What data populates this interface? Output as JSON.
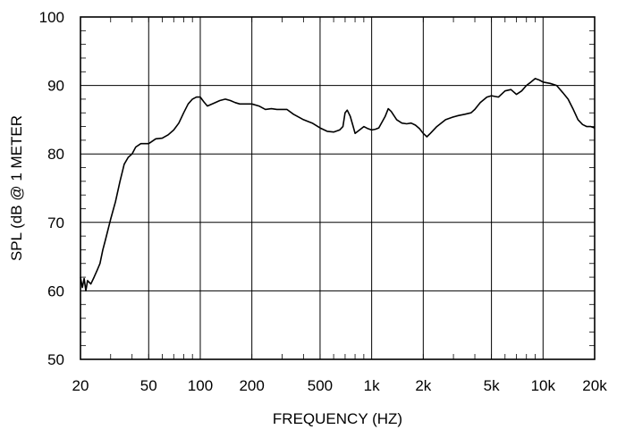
{
  "chart_data": {
    "type": "line",
    "title": "",
    "xlabel": "FREQUENCY  (HZ)",
    "ylabel": "SPL (dB @ 1 METER",
    "xscale": "log",
    "xlim": [
      20,
      20000
    ],
    "ylim": [
      50,
      100
    ],
    "grid": true,
    "x_ticks": [
      20,
      50,
      100,
      200,
      500,
      1000,
      2000,
      5000,
      10000,
      20000
    ],
    "x_tick_labels": [
      "20",
      "50",
      "100",
      "200",
      "500",
      "1k",
      "2k",
      "5k",
      "10k",
      "20k"
    ],
    "y_ticks": [
      50,
      60,
      70,
      80,
      90,
      100
    ],
    "y_tick_labels": [
      "50",
      "60",
      "70",
      "80",
      "90",
      "100"
    ],
    "series": [
      {
        "color": "#000000",
        "points": [
          [
            20,
            62
          ],
          [
            20.5,
            60.5
          ],
          [
            21,
            61.8
          ],
          [
            21.5,
            60.0
          ],
          [
            22,
            61.5
          ],
          [
            23,
            61.0
          ],
          [
            24,
            62.0
          ],
          [
            25,
            63.0
          ],
          [
            26,
            64.0
          ],
          [
            27,
            66.0
          ],
          [
            28,
            67.5
          ],
          [
            29,
            69.0
          ],
          [
            30,
            70.5
          ],
          [
            32,
            73.0
          ],
          [
            34,
            76.0
          ],
          [
            36,
            78.5
          ],
          [
            38,
            79.5
          ],
          [
            40,
            80.0
          ],
          [
            42,
            81.0
          ],
          [
            45,
            81.5
          ],
          [
            50,
            81.5
          ],
          [
            55,
            82.2
          ],
          [
            60,
            82.3
          ],
          [
            65,
            82.8
          ],
          [
            70,
            83.5
          ],
          [
            75,
            84.5
          ],
          [
            80,
            86.0
          ],
          [
            85,
            87.3
          ],
          [
            90,
            88.0
          ],
          [
            95,
            88.3
          ],
          [
            100,
            88.3
          ],
          [
            105,
            87.6
          ],
          [
            110,
            87.0
          ],
          [
            120,
            87.4
          ],
          [
            130,
            87.8
          ],
          [
            140,
            88.0
          ],
          [
            150,
            87.8
          ],
          [
            160,
            87.5
          ],
          [
            170,
            87.3
          ],
          [
            180,
            87.3
          ],
          [
            200,
            87.3
          ],
          [
            220,
            87.0
          ],
          [
            240,
            86.5
          ],
          [
            260,
            86.6
          ],
          [
            280,
            86.5
          ],
          [
            300,
            86.5
          ],
          [
            320,
            86.5
          ],
          [
            350,
            85.8
          ],
          [
            380,
            85.3
          ],
          [
            400,
            85.0
          ],
          [
            450,
            84.5
          ],
          [
            500,
            83.8
          ],
          [
            550,
            83.3
          ],
          [
            600,
            83.2
          ],
          [
            650,
            83.5
          ],
          [
            680,
            84.0
          ],
          [
            700,
            86.0
          ],
          [
            720,
            86.4
          ],
          [
            750,
            85.5
          ],
          [
            780,
            84.0
          ],
          [
            800,
            83.0
          ],
          [
            850,
            83.5
          ],
          [
            900,
            84.0
          ],
          [
            950,
            83.7
          ],
          [
            1000,
            83.5
          ],
          [
            1050,
            83.6
          ],
          [
            1100,
            83.8
          ],
          [
            1200,
            85.5
          ],
          [
            1250,
            86.6
          ],
          [
            1300,
            86.2
          ],
          [
            1400,
            85.0
          ],
          [
            1500,
            84.5
          ],
          [
            1600,
            84.4
          ],
          [
            1700,
            84.5
          ],
          [
            1800,
            84.2
          ],
          [
            1900,
            83.7
          ],
          [
            2000,
            83.0
          ],
          [
            2100,
            82.5
          ],
          [
            2200,
            83.0
          ],
          [
            2400,
            84.0
          ],
          [
            2700,
            85.0
          ],
          [
            3000,
            85.4
          ],
          [
            3200,
            85.6
          ],
          [
            3500,
            85.8
          ],
          [
            3800,
            86.0
          ],
          [
            4000,
            86.5
          ],
          [
            4300,
            87.5
          ],
          [
            4700,
            88.3
          ],
          [
            5000,
            88.5
          ],
          [
            5500,
            88.3
          ],
          [
            6000,
            89.2
          ],
          [
            6500,
            89.4
          ],
          [
            7000,
            88.7
          ],
          [
            7500,
            89.2
          ],
          [
            8000,
            90.0
          ],
          [
            8500,
            90.5
          ],
          [
            9000,
            91.0
          ],
          [
            9500,
            90.8
          ],
          [
            10000,
            90.5
          ],
          [
            11000,
            90.3
          ],
          [
            12000,
            90.0
          ],
          [
            13000,
            89.0
          ],
          [
            14000,
            88.0
          ],
          [
            15000,
            86.5
          ],
          [
            16000,
            85.0
          ],
          [
            17000,
            84.3
          ],
          [
            18000,
            84.0
          ],
          [
            19000,
            84.0
          ],
          [
            20000,
            83.8
          ]
        ]
      }
    ]
  }
}
